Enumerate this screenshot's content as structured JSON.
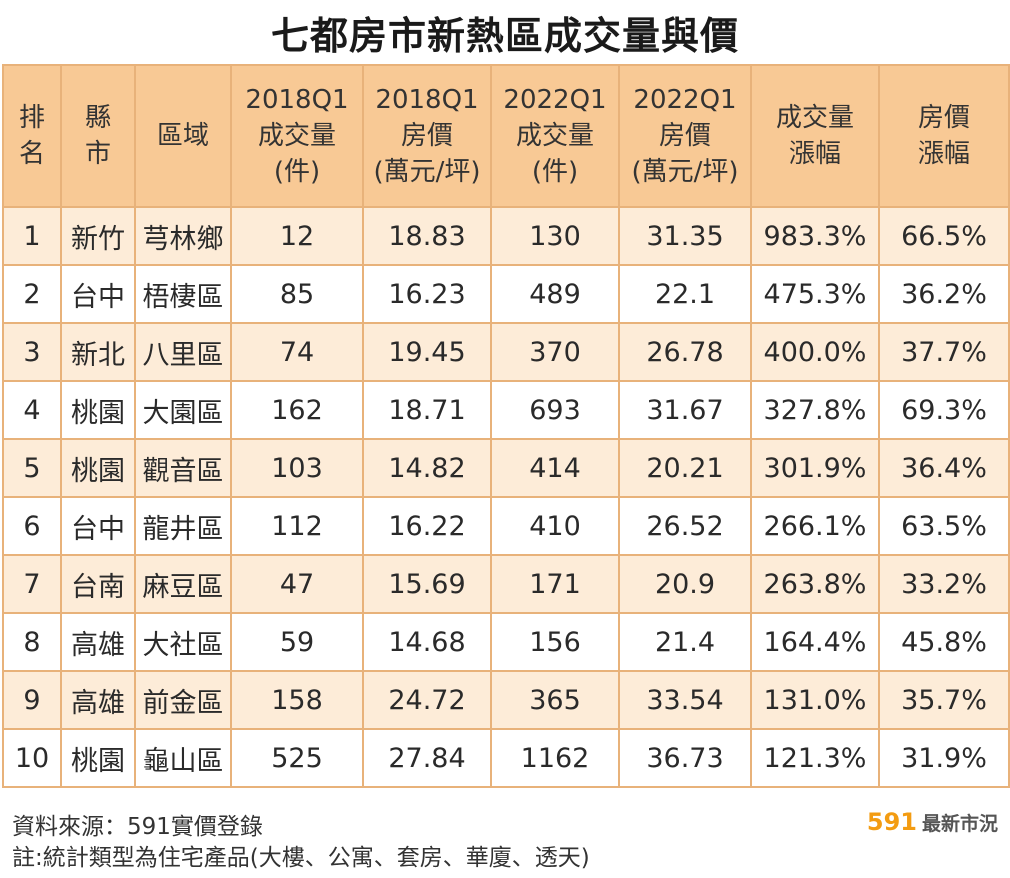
{
  "title": "七都房市新熱區成交量與價",
  "headers": [
    [
      "排",
      "名"
    ],
    [
      "縣",
      "市"
    ],
    [
      "區域"
    ],
    [
      "2018Q1",
      "成交量",
      "(件)"
    ],
    [
      "2018Q1",
      "房價",
      "(萬元/坪)"
    ],
    [
      "2022Q1",
      "成交量",
      "(件)"
    ],
    [
      "2022Q1",
      "房價",
      "(萬元/坪)"
    ],
    [
      "成交量",
      "漲幅"
    ],
    [
      "房價",
      "漲幅"
    ]
  ],
  "rows": [
    [
      "1",
      "新竹",
      "芎林鄉",
      "12",
      "18.83",
      "130",
      "31.35",
      "983.3%",
      "66.5%"
    ],
    [
      "2",
      "台中",
      "梧棲區",
      "85",
      "16.23",
      "489",
      "22.1",
      "475.3%",
      "36.2%"
    ],
    [
      "3",
      "新北",
      "八里區",
      "74",
      "19.45",
      "370",
      "26.78",
      "400.0%",
      "37.7%"
    ],
    [
      "4",
      "桃園",
      "大園區",
      "162",
      "18.71",
      "693",
      "31.67",
      "327.8%",
      "69.3%"
    ],
    [
      "5",
      "桃園",
      "觀音區",
      "103",
      "14.82",
      "414",
      "20.21",
      "301.9%",
      "36.4%"
    ],
    [
      "6",
      "台中",
      "龍井區",
      "112",
      "16.22",
      "410",
      "26.52",
      "266.1%",
      "63.5%"
    ],
    [
      "7",
      "台南",
      "麻豆區",
      "47",
      "15.69",
      "171",
      "20.9",
      "263.8%",
      "33.2%"
    ],
    [
      "8",
      "高雄",
      "大社區",
      "59",
      "14.68",
      "156",
      "21.4",
      "164.4%",
      "45.8%"
    ],
    [
      "9",
      "高雄",
      "前金區",
      "158",
      "24.72",
      "365",
      "33.54",
      "131.0%",
      "35.7%"
    ],
    [
      "10",
      "桃園",
      "龜山區",
      "525",
      "27.84",
      "1162",
      "36.73",
      "121.3%",
      "31.9%"
    ]
  ],
  "footer": {
    "source": "資料來源：591實價登錄",
    "note": "註:統計類型為住宅產品(大樓、公寓、套房、華廈、透天)"
  },
  "brand": {
    "number": "591",
    "text": "最新市況"
  },
  "colors": {
    "header_bg": "#f8c995",
    "stripe_bg": "#fdecd8",
    "border": "#e8b27a",
    "brand": "#f39c12"
  }
}
